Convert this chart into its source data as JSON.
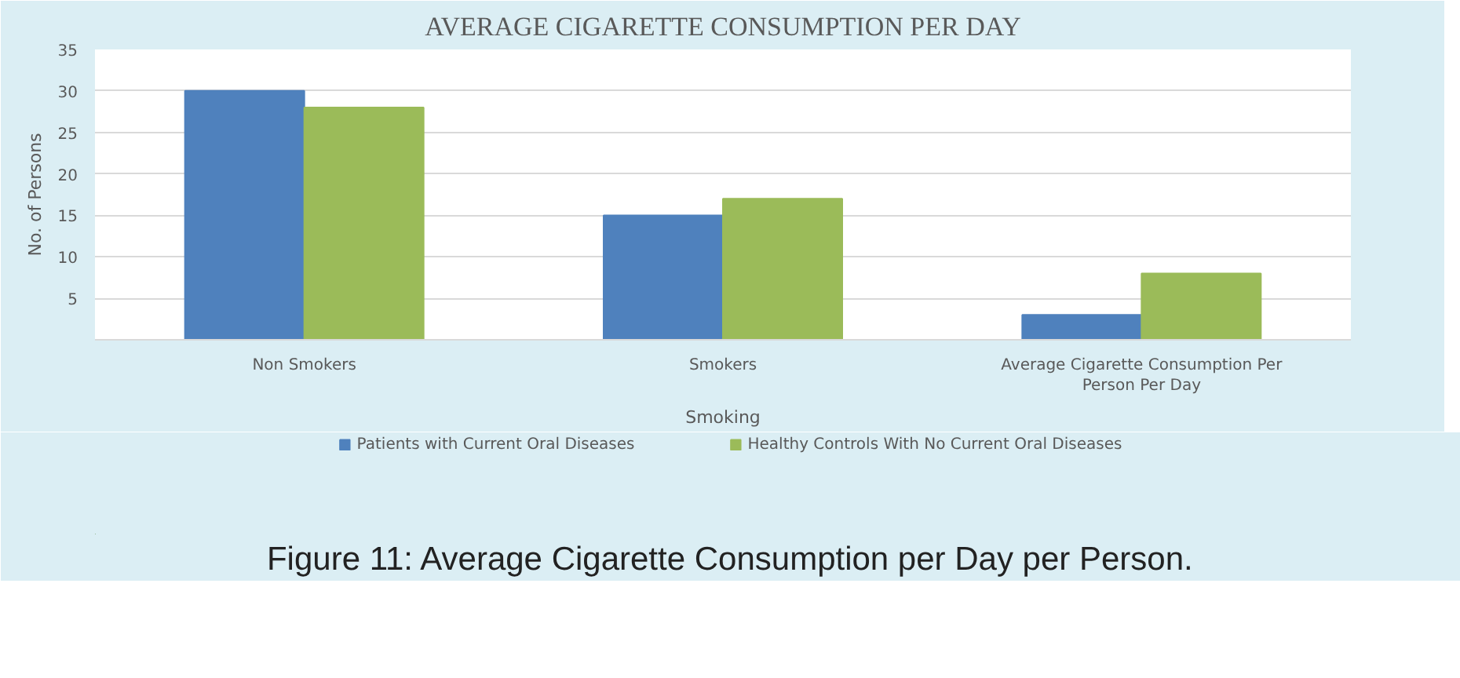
{
  "chart_data": {
    "type": "bar",
    "title": "AVERAGE CIGARETTE CONSUMPTION PER DAY",
    "xlabel": "Smoking",
    "ylabel": "No. of Persons",
    "categories": [
      "Non Smokers",
      "Smokers",
      "Average Cigarette Consumption Per\nPerson Per Day"
    ],
    "series": [
      {
        "name": "Patients with Current Oral Diseases",
        "color": "#4f81bd",
        "values": [
          30,
          15,
          3
        ]
      },
      {
        "name": "Healthy Controls With No Current Oral Diseases",
        "color": "#9bbb59",
        "values": [
          28,
          17,
          8
        ]
      }
    ],
    "ylim": [
      0,
      35
    ],
    "yticks": [
      5,
      10,
      15,
      20,
      25,
      30,
      35
    ],
    "grid": "y",
    "legend": "bottom",
    "annotations": [
      "Figure 11: Average Cigarette Consumption per Day per Person."
    ]
  }
}
